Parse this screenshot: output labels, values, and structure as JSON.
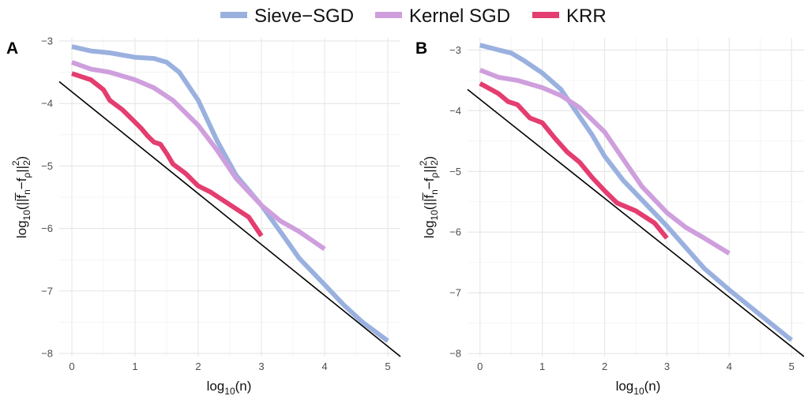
{
  "legend": {
    "entries": [
      {
        "name": "Sieve−SGD",
        "color": "#9AB1DF"
      },
      {
        "name": "Kernel SGD",
        "color": "#CF9FDD"
      },
      {
        "name": "KRR",
        "color": "#E43D6F"
      }
    ]
  },
  "reference_line_color": "#000000",
  "chart_data": [
    {
      "type": "line",
      "panel_label": "A",
      "xlabel_base": "log",
      "xlabel_sub": "10",
      "xlabel_arg": "(n)",
      "ylabel_text": "log10(||f̄n−fp||2²)",
      "xlim": [
        -0.2,
        5.2
      ],
      "ylim": [
        -8.05,
        -2.95
      ],
      "x_ticks": [
        0,
        1,
        2,
        3,
        4,
        5
      ],
      "x_tick_labels": [
        "0",
        "1",
        "2",
        "3",
        "4",
        "5"
      ],
      "y_ticks": [
        -3,
        -4,
        -5,
        -6,
        -7,
        -8
      ],
      "y_tick_labels": [
        "−3",
        "−4",
        "−5",
        "−6",
        "−7",
        "−8"
      ],
      "grid": true,
      "series": [
        {
          "name": "Sieve−SGD",
          "color": "#9AB1DF",
          "x": [
            0,
            0.3,
            0.6,
            1,
            1.3,
            1.5,
            1.7,
            2,
            2.3,
            2.6,
            3,
            3.3,
            3.6,
            4,
            4.3,
            4.6,
            5
          ],
          "y": [
            -3.09,
            -3.16,
            -3.19,
            -3.26,
            -3.28,
            -3.34,
            -3.5,
            -3.95,
            -4.6,
            -5.15,
            -5.63,
            -6.05,
            -6.48,
            -6.9,
            -7.22,
            -7.5,
            -7.8
          ]
        },
        {
          "name": "Kernel SGD",
          "color": "#CF9FDD",
          "x": [
            0,
            0.3,
            0.6,
            1,
            1.3,
            1.6,
            2,
            2.3,
            2.6,
            3,
            3.3,
            3.6,
            4
          ],
          "y": [
            -3.34,
            -3.45,
            -3.5,
            -3.62,
            -3.75,
            -3.95,
            -4.35,
            -4.75,
            -5.2,
            -5.63,
            -5.88,
            -6.05,
            -6.33
          ]
        },
        {
          "name": "KRR",
          "color": "#E43D6F",
          "x": [
            0,
            0.3,
            0.5,
            0.6,
            0.8,
            1,
            1.1,
            1.2,
            1.3,
            1.4,
            1.5,
            1.6,
            1.8,
            2,
            2.2,
            2.5,
            2.8,
            3
          ],
          "y": [
            -3.52,
            -3.62,
            -3.78,
            -3.95,
            -4.1,
            -4.3,
            -4.4,
            -4.52,
            -4.62,
            -4.65,
            -4.8,
            -4.97,
            -5.12,
            -5.32,
            -5.42,
            -5.62,
            -5.82,
            -6.12
          ]
        }
      ],
      "reference_line": {
        "x": [
          -0.2,
          5.2
        ],
        "y": [
          -3.65,
          -8.05
        ]
      }
    },
    {
      "type": "line",
      "panel_label": "B",
      "xlabel_base": "log",
      "xlabel_sub": "10",
      "xlabel_arg": "(n)",
      "ylabel_text": "log10(||f̄n−fp||2²)",
      "xlim": [
        -0.2,
        5.2
      ],
      "ylim": [
        -8.05,
        -2.8
      ],
      "x_ticks": [
        0,
        1,
        2,
        3,
        4,
        5
      ],
      "x_tick_labels": [
        "0",
        "1",
        "2",
        "3",
        "4",
        "5"
      ],
      "y_ticks": [
        -3,
        -4,
        -5,
        -6,
        -7,
        -8
      ],
      "y_tick_labels": [
        "−3",
        "−4",
        "−5",
        "−6",
        "−7",
        "−8"
      ],
      "grid": true,
      "series": [
        {
          "name": "Sieve−SGD",
          "color": "#9AB1DF",
          "x": [
            0,
            0.3,
            0.5,
            0.7,
            1,
            1.3,
            1.5,
            1.8,
            2,
            2.3,
            2.6,
            3,
            3.3,
            3.6,
            4,
            4.3,
            4.6,
            5
          ],
          "y": [
            -2.92,
            -3,
            -3.05,
            -3.17,
            -3.38,
            -3.65,
            -3.95,
            -4.4,
            -4.75,
            -5.15,
            -5.47,
            -5.9,
            -6.25,
            -6.6,
            -6.95,
            -7.2,
            -7.45,
            -7.78
          ]
        },
        {
          "name": "Kernel SGD",
          "color": "#CF9FDD",
          "x": [
            0,
            0.3,
            0.6,
            1,
            1.3,
            1.6,
            2,
            2.3,
            2.6,
            3,
            3.3,
            3.6,
            4
          ],
          "y": [
            -3.33,
            -3.45,
            -3.5,
            -3.62,
            -3.75,
            -3.95,
            -4.35,
            -4.8,
            -5.25,
            -5.68,
            -5.92,
            -6.1,
            -6.35
          ]
        },
        {
          "name": "KRR",
          "color": "#E43D6F",
          "x": [
            0,
            0.3,
            0.45,
            0.6,
            0.8,
            1,
            1.2,
            1.4,
            1.6,
            1.8,
            2,
            2.2,
            2.5,
            2.8,
            3
          ],
          "y": [
            -3.55,
            -3.72,
            -3.85,
            -3.9,
            -4.12,
            -4.2,
            -4.45,
            -4.68,
            -4.85,
            -5.1,
            -5.32,
            -5.52,
            -5.65,
            -5.85,
            -6.1
          ]
        }
      ],
      "reference_line": {
        "x": [
          -0.2,
          5.2
        ],
        "y": [
          -3.65,
          -8.05
        ]
      }
    }
  ]
}
